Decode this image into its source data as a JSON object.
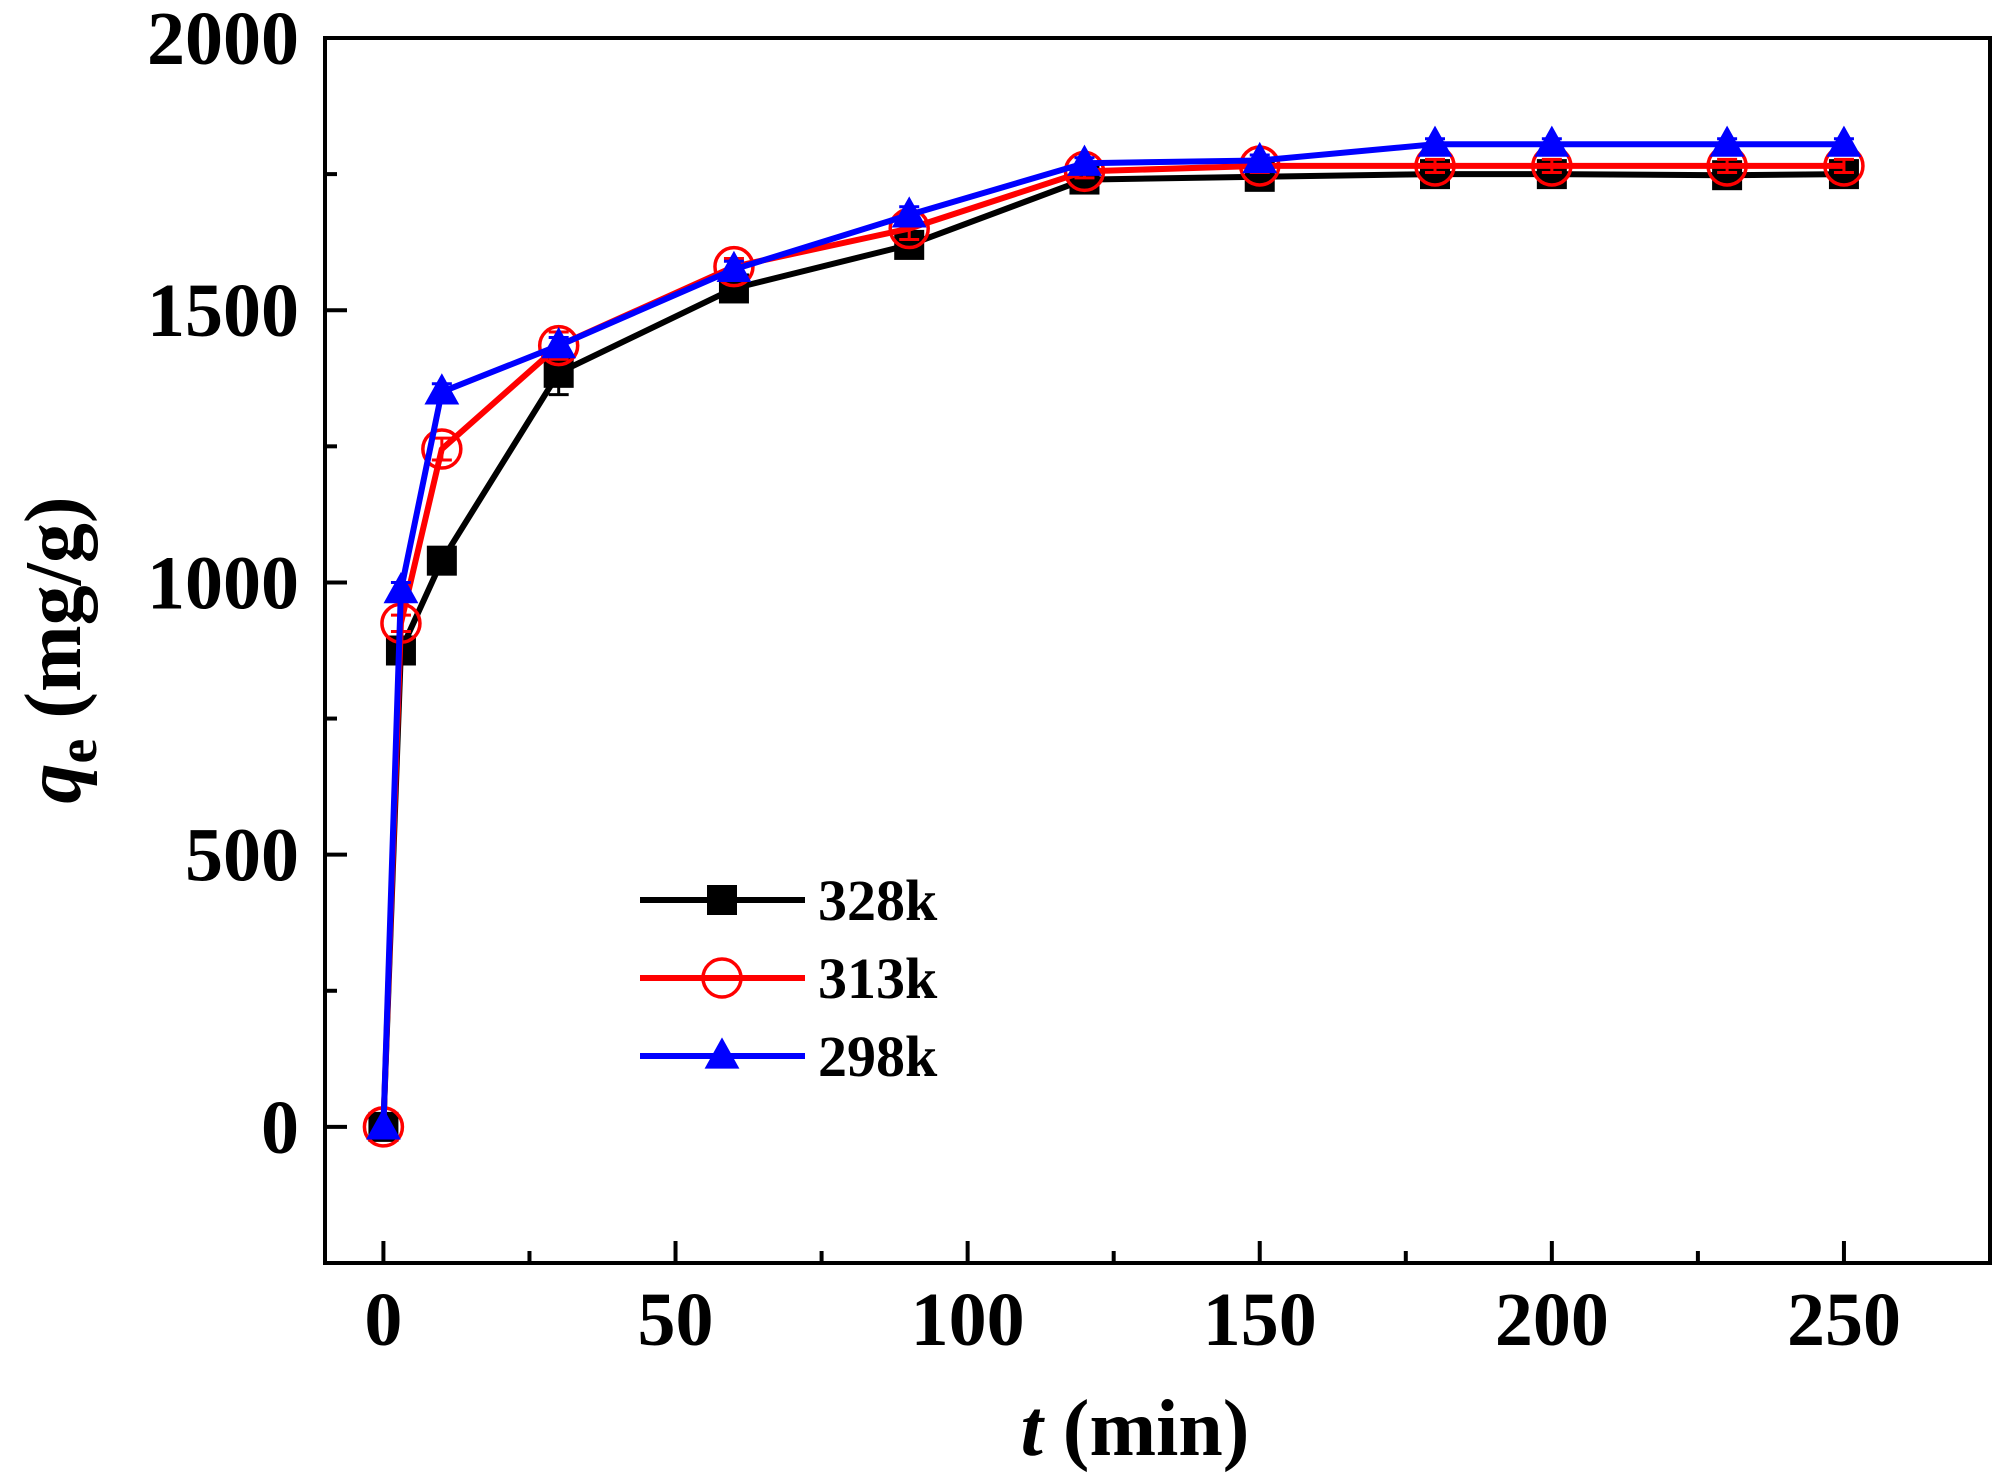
{
  "chart_data": {
    "type": "line",
    "title": "",
    "xlabel": {
      "italic": "t",
      "rest": " (min)"
    },
    "ylabel": {
      "italic": "q",
      "sub": "e",
      "rest": " (mg/g)"
    },
    "xlim": [
      -10,
      275
    ],
    "ylim": [
      -250,
      2000
    ],
    "x_major_ticks": [
      0,
      50,
      100,
      150,
      200,
      250
    ],
    "x_minor_ticks": [
      25,
      75,
      125,
      175,
      225
    ],
    "y_major_ticks": [
      0,
      500,
      1000,
      1500,
      2000
    ],
    "y_minor_ticks": [
      250,
      750,
      1250,
      1750
    ],
    "x_tick_labels": [
      "0",
      "50",
      "100",
      "150",
      "200",
      "250"
    ],
    "y_tick_labels": [
      "0",
      "500",
      "1000",
      "1500",
      "2000"
    ],
    "grid": false,
    "legend_position": "center-left",
    "x": [
      0,
      3,
      10,
      30,
      60,
      90,
      120,
      150,
      180,
      200,
      230,
      250
    ],
    "series": [
      {
        "name": "328k",
        "color": "#000000",
        "marker": "square",
        "values": [
          0,
          875,
          1040,
          1385,
          1540,
          1620,
          1740,
          1745,
          1750,
          1750,
          1748,
          1750
        ],
        "errors": [
          0,
          15,
          15,
          40,
          15,
          15,
          12,
          12,
          12,
          12,
          12,
          12
        ]
      },
      {
        "name": "313k",
        "color": "#ff0000",
        "marker": "circle-open",
        "values": [
          0,
          925,
          1245,
          1435,
          1580,
          1650,
          1755,
          1765,
          1765,
          1765,
          1765,
          1765
        ],
        "errors": [
          0,
          15,
          20,
          25,
          15,
          20,
          12,
          12,
          12,
          12,
          12,
          12
        ]
      },
      {
        "name": "298k",
        "color": "#0000ff",
        "marker": "triangle",
        "values": [
          0,
          985,
          1350,
          1435,
          1575,
          1675,
          1770,
          1775,
          1805,
          1805,
          1805,
          1805
        ],
        "errors": [
          0,
          15,
          15,
          15,
          15,
          15,
          10,
          10,
          10,
          10,
          10,
          10
        ]
      }
    ]
  }
}
